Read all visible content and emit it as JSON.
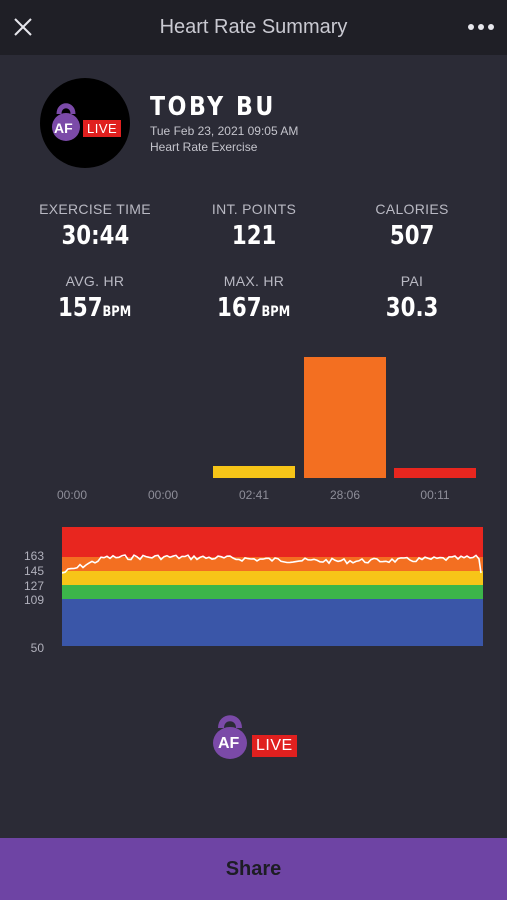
{
  "header": {
    "title": "Heart Rate Summary"
  },
  "profile": {
    "name": "TOBY BU",
    "datetime": "Tue Feb 23, 2021 09:05 AM",
    "workout_type": "Heart Rate Exercise"
  },
  "logo": {
    "letters": "AF",
    "badge": "LIVE"
  },
  "stats": {
    "exercise_time": {
      "label": "EXERCISE TIME",
      "value": "30:44"
    },
    "int_points": {
      "label": "INT. POINTS",
      "value": "121"
    },
    "calories": {
      "label": "CALORIES",
      "value": "507"
    },
    "avg_hr": {
      "label": "AVG. HR",
      "value": "157",
      "unit": "BPM"
    },
    "max_hr": {
      "label": "MAX. HR",
      "value": "167",
      "unit": "BPM"
    },
    "pai": {
      "label": "PAI",
      "value": "30.3"
    }
  },
  "zones": {
    "times": [
      "00:00",
      "00:00",
      "02:41",
      "28:06",
      "00:11"
    ],
    "seconds": [
      0,
      0,
      161,
      1686,
      11
    ],
    "colors": [
      "#3a56a8",
      "#3cb54a",
      "#f7c518",
      "#f36f21",
      "#e8261f"
    ]
  },
  "hr_chart": {
    "y_ticks": [
      "163",
      "145",
      "127",
      "109",
      "50"
    ],
    "band_colors": [
      "#e8261f",
      "#f36f21",
      "#f7c518",
      "#3cb54a",
      "#3a56a8"
    ]
  },
  "footer": {
    "share_label": "Share"
  }
}
